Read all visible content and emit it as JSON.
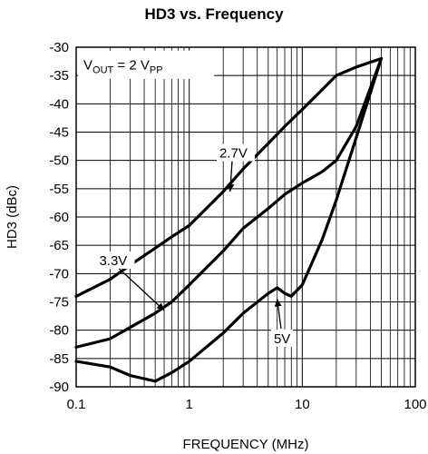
{
  "chart_data": {
    "type": "line",
    "title": "HD3 vs. Frequency",
    "xlabel": "FREQUENCY (MHz)",
    "ylabel": "HD3 (dBc)",
    "xscale": "log",
    "xlim": [
      0.1,
      100
    ],
    "ylim": [
      -90,
      -30
    ],
    "grid": true,
    "x_ticks": [
      "0.1",
      "1",
      "10",
      "100"
    ],
    "y_ticks": [
      "-30",
      "-35",
      "-40",
      "-45",
      "-50",
      "-55",
      "-60",
      "-65",
      "-70",
      "-75",
      "-80",
      "-85",
      "-90"
    ],
    "annotation_box": {
      "main": "V",
      "sub1": "OUT",
      "mid": " = 2 V",
      "sub2": "PP"
    },
    "series": [
      {
        "name": "2.7V",
        "x": [
          0.1,
          0.2,
          0.3,
          0.5,
          0.7,
          1,
          2,
          3,
          5,
          7,
          10,
          15,
          20,
          30,
          50
        ],
        "y": [
          -74,
          -71,
          -68.5,
          -65.5,
          -63.5,
          -61.5,
          -55.5,
          -51.5,
          -47,
          -44,
          -41,
          -37.5,
          -35,
          -33.5,
          -32
        ]
      },
      {
        "name": "3.3V",
        "x": [
          0.1,
          0.2,
          0.3,
          0.5,
          0.7,
          1,
          2,
          3,
          5,
          7,
          10,
          15,
          20,
          30,
          50
        ],
        "y": [
          -83,
          -81.5,
          -79.5,
          -77,
          -75,
          -72,
          -66,
          -62,
          -58.5,
          -56,
          -54,
          -52,
          -50,
          -44,
          -32
        ]
      },
      {
        "name": "5V",
        "x": [
          0.1,
          0.2,
          0.3,
          0.5,
          0.7,
          1,
          2,
          3,
          5,
          6,
          7,
          8,
          10,
          15,
          20,
          30,
          50
        ],
        "y": [
          -85.5,
          -86.5,
          -88,
          -89,
          -87.5,
          -85.5,
          -80.5,
          -77,
          -73.5,
          -72.5,
          -73.5,
          -74,
          -72,
          -64,
          -57,
          -46,
          -32
        ]
      }
    ],
    "labels": [
      {
        "text": "2.7V",
        "x": 2.3,
        "y": -55.5,
        "tx": 1.85,
        "ty": -49.5
      },
      {
        "text": "3.3V",
        "x": 0.6,
        "y": -76.5,
        "tx": 0.16,
        "ty": -68.5
      },
      {
        "text": "5V",
        "x": 6.0,
        "y": -74.5,
        "tx": 5.6,
        "ty": -82.3
      }
    ]
  }
}
